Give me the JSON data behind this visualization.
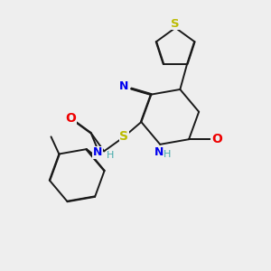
{
  "background_color": "#eeeeee",
  "bond_color": "#1a1a1a",
  "bond_width": 1.4,
  "colors": {
    "S": "#bbbb00",
    "N": "#0000ee",
    "O": "#ee0000",
    "H": "#44aaaa",
    "C": "#1a1a1a"
  }
}
